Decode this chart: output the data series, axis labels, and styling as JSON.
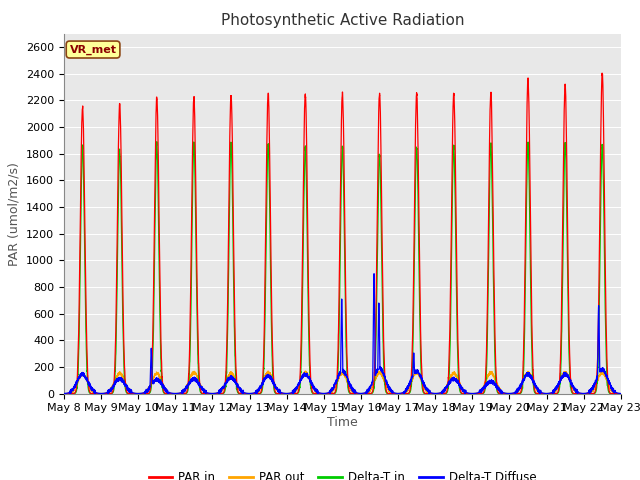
{
  "title": "Photosynthetic Active Radiation",
  "ylabel": "PAR (umol/m2/s)",
  "xlabel": "Time",
  "ylim": [
    0,
    2700
  ],
  "yticks": [
    0,
    200,
    400,
    600,
    800,
    1000,
    1200,
    1400,
    1600,
    1800,
    2000,
    2200,
    2400,
    2600
  ],
  "x_labels": [
    "May 8",
    "May 9",
    "May 10",
    "May 11",
    "May 12",
    "May 13",
    "May 14",
    "May 15",
    "May 16",
    "May 17",
    "May 18",
    "May 19",
    "May 20",
    "May 21",
    "May 22",
    "May 23"
  ],
  "colors": {
    "PAR_in": "#ff0000",
    "PAR_out": "#ffa500",
    "Delta_T_in": "#00cc00",
    "Delta_T_Diffuse": "#0000ff"
  },
  "legend_labels": [
    "PAR in",
    "PAR out",
    "Delta-T in",
    "Delta-T Diffuse"
  ],
  "watermark": "VR_met",
  "plot_bg": "#e8e8e8",
  "fig_bg": "#ffffff",
  "title_fontsize": 11,
  "tick_fontsize": 8,
  "axis_label_fontsize": 9,
  "par_in_peaks": [
    2150,
    2170,
    2220,
    2220,
    2240,
    2250,
    2240,
    2250,
    2250,
    2250,
    2250,
    2260,
    2360,
    2310,
    2400
  ],
  "delta_t_in_peaks": [
    1850,
    1820,
    1870,
    1870,
    1870,
    1870,
    1840,
    1850,
    1800,
    1850,
    1850,
    1870,
    1870,
    1870,
    1870
  ],
  "par_out_peaks": [
    145,
    150,
    150,
    155,
    150,
    155,
    155,
    150,
    155,
    155,
    150,
    155,
    155,
    155,
    155
  ],
  "blue_base_peaks": [
    145,
    110,
    105,
    110,
    120,
    130,
    145,
    170,
    190,
    165,
    110,
    90,
    145,
    145,
    180
  ],
  "blue_spikes": [
    {
      "day": 7.48,
      "val": 710
    },
    {
      "day": 8.48,
      "val": 680
    },
    {
      "day": 8.52,
      "val": 200
    },
    {
      "day": 2.35,
      "val": 340
    },
    {
      "day": 9.42,
      "val": 305
    },
    {
      "day": 9.52,
      "val": 180
    },
    {
      "day": 14.4,
      "val": 660
    },
    {
      "day": 14.55,
      "val": 100
    },
    {
      "day": 8.35,
      "val": 900
    }
  ],
  "sigma_in": 0.06,
  "sigma_out": 0.13,
  "sigma_green": 0.055
}
